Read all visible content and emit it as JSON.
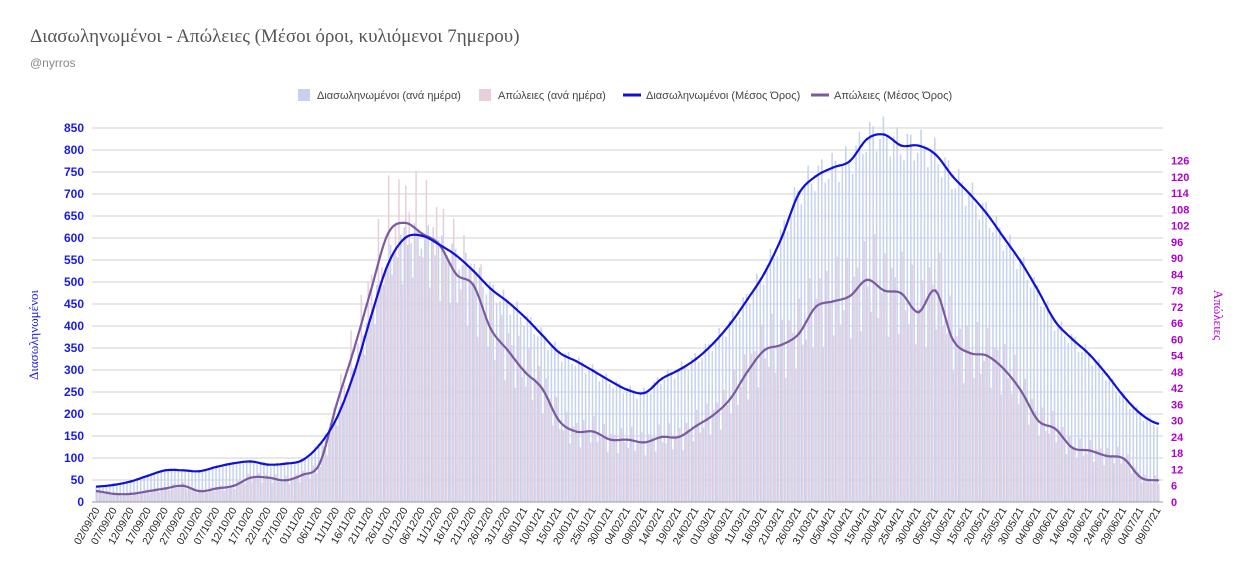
{
  "title": "Διασωληνωμένοι - Απώλειες (Μέσοι όροι, κυλιόμενοι 7ημερου)",
  "subtitle": "@nyrros",
  "chart_data": {
    "type": "bar+line",
    "title": "Διασωληνωμένοι - Απώλειες (Μέσοι όροι, κυλιόμενοι 7ημερου)",
    "y_left_label": "Διασωληνωμένοι",
    "y_right_label": "Απώλειες",
    "y_left_range": [
      0,
      850
    ],
    "y_left_ticks": [
      0,
      50,
      100,
      150,
      200,
      250,
      300,
      350,
      400,
      450,
      500,
      550,
      600,
      650,
      700,
      750,
      800,
      850
    ],
    "y_right_range": [
      0,
      138
    ],
    "y_right_ticks": [
      0,
      6,
      12,
      18,
      24,
      30,
      36,
      42,
      48,
      54,
      60,
      66,
      72,
      78,
      84,
      90,
      96,
      102,
      108,
      114,
      120,
      126
    ],
    "grid": true,
    "legend_position": "top-center",
    "colors": {
      "intubated_daily": "#c5d3f0",
      "deaths_daily": "#e8cfdc",
      "intubated_avg": "#1010dd",
      "deaths_avg": "#7a5aa0",
      "left_axis": "#1a1ae6",
      "right_axis": "#b000d0",
      "grid": "#d0d0d0"
    },
    "legend": [
      {
        "key": "intubated_daily",
        "label": "Διασωληνωμένοι (ανά ημέρα)",
        "kind": "bar"
      },
      {
        "key": "deaths_daily",
        "label": "Απώλειες (ανά ημέρα)",
        "kind": "bar"
      },
      {
        "key": "intubated_avg",
        "label": "Διασωληνωμένοι (Μέσος Όρος)",
        "kind": "line"
      },
      {
        "key": "deaths_avg",
        "label": "Απώλειες (Μέσος Όρος)",
        "kind": "line"
      }
    ],
    "x_labels": [
      "02/09/20",
      "07/09/20",
      "12/09/20",
      "17/09/20",
      "22/09/20",
      "27/09/20",
      "02/10/20",
      "07/10/20",
      "12/10/20",
      "17/10/20",
      "22/10/20",
      "27/10/20",
      "01/11/20",
      "06/11/20",
      "11/11/20",
      "16/11/20",
      "21/11/20",
      "26/11/20",
      "01/12/20",
      "06/12/20",
      "11/12/20",
      "16/12/20",
      "21/12/20",
      "26/12/20",
      "31/12/20",
      "05/01/21",
      "10/01/21",
      "15/01/21",
      "20/01/21",
      "25/01/21",
      "30/01/21",
      "04/02/21",
      "09/02/21",
      "14/02/21",
      "19/02/21",
      "24/02/21",
      "01/03/21",
      "06/03/21",
      "11/03/21",
      "16/03/21",
      "21/03/21",
      "26/03/21",
      "31/03/21",
      "05/04/21",
      "10/04/21",
      "15/04/21",
      "20/04/21",
      "25/04/21",
      "30/04/21",
      "05/05/21",
      "10/05/21",
      "15/05/21",
      "20/05/21",
      "25/05/21",
      "30/05/21",
      "04/06/21",
      "09/06/21",
      "14/06/21",
      "19/06/21",
      "24/06/21",
      "29/06/21",
      "04/07/21",
      "09/07/21"
    ],
    "series": [
      {
        "name": "Διασωληνωμένοι (Μέσος Όρος)",
        "axis": "left",
        "values": [
          35,
          39,
          47,
          60,
          72,
          72,
          70,
          80,
          88,
          92,
          85,
          87,
          95,
          130,
          190,
          290,
          420,
          540,
          600,
          605,
          585,
          560,
          525,
          485,
          455,
          420,
          380,
          340,
          320,
          298,
          275,
          255,
          248,
          280,
          300,
          325,
          360,
          405,
          460,
          520,
          600,
          700,
          740,
          760,
          775,
          825,
          835,
          810,
          810,
          790,
          740,
          700,
          655,
          600,
          545,
          480,
          410,
          370,
          335,
          290,
          240,
          200,
          178
        ]
      },
      {
        "name": "Απώλειες (Μέσος Όρος)",
        "axis": "right",
        "values": [
          4,
          3,
          3,
          4,
          5,
          6,
          4,
          5,
          6,
          9,
          9,
          8,
          10,
          14,
          36,
          56,
          78,
          99,
          103,
          99,
          95,
          84,
          80,
          64,
          56,
          48,
          42,
          30,
          26,
          26,
          23,
          23,
          22,
          24,
          24,
          28,
          32,
          38,
          48,
          56,
          58,
          62,
          72,
          74,
          76,
          82,
          78,
          77,
          70,
          78,
          60,
          55,
          54,
          49,
          41,
          30,
          27,
          20,
          19,
          17,
          16,
          9,
          8
        ]
      }
    ]
  }
}
